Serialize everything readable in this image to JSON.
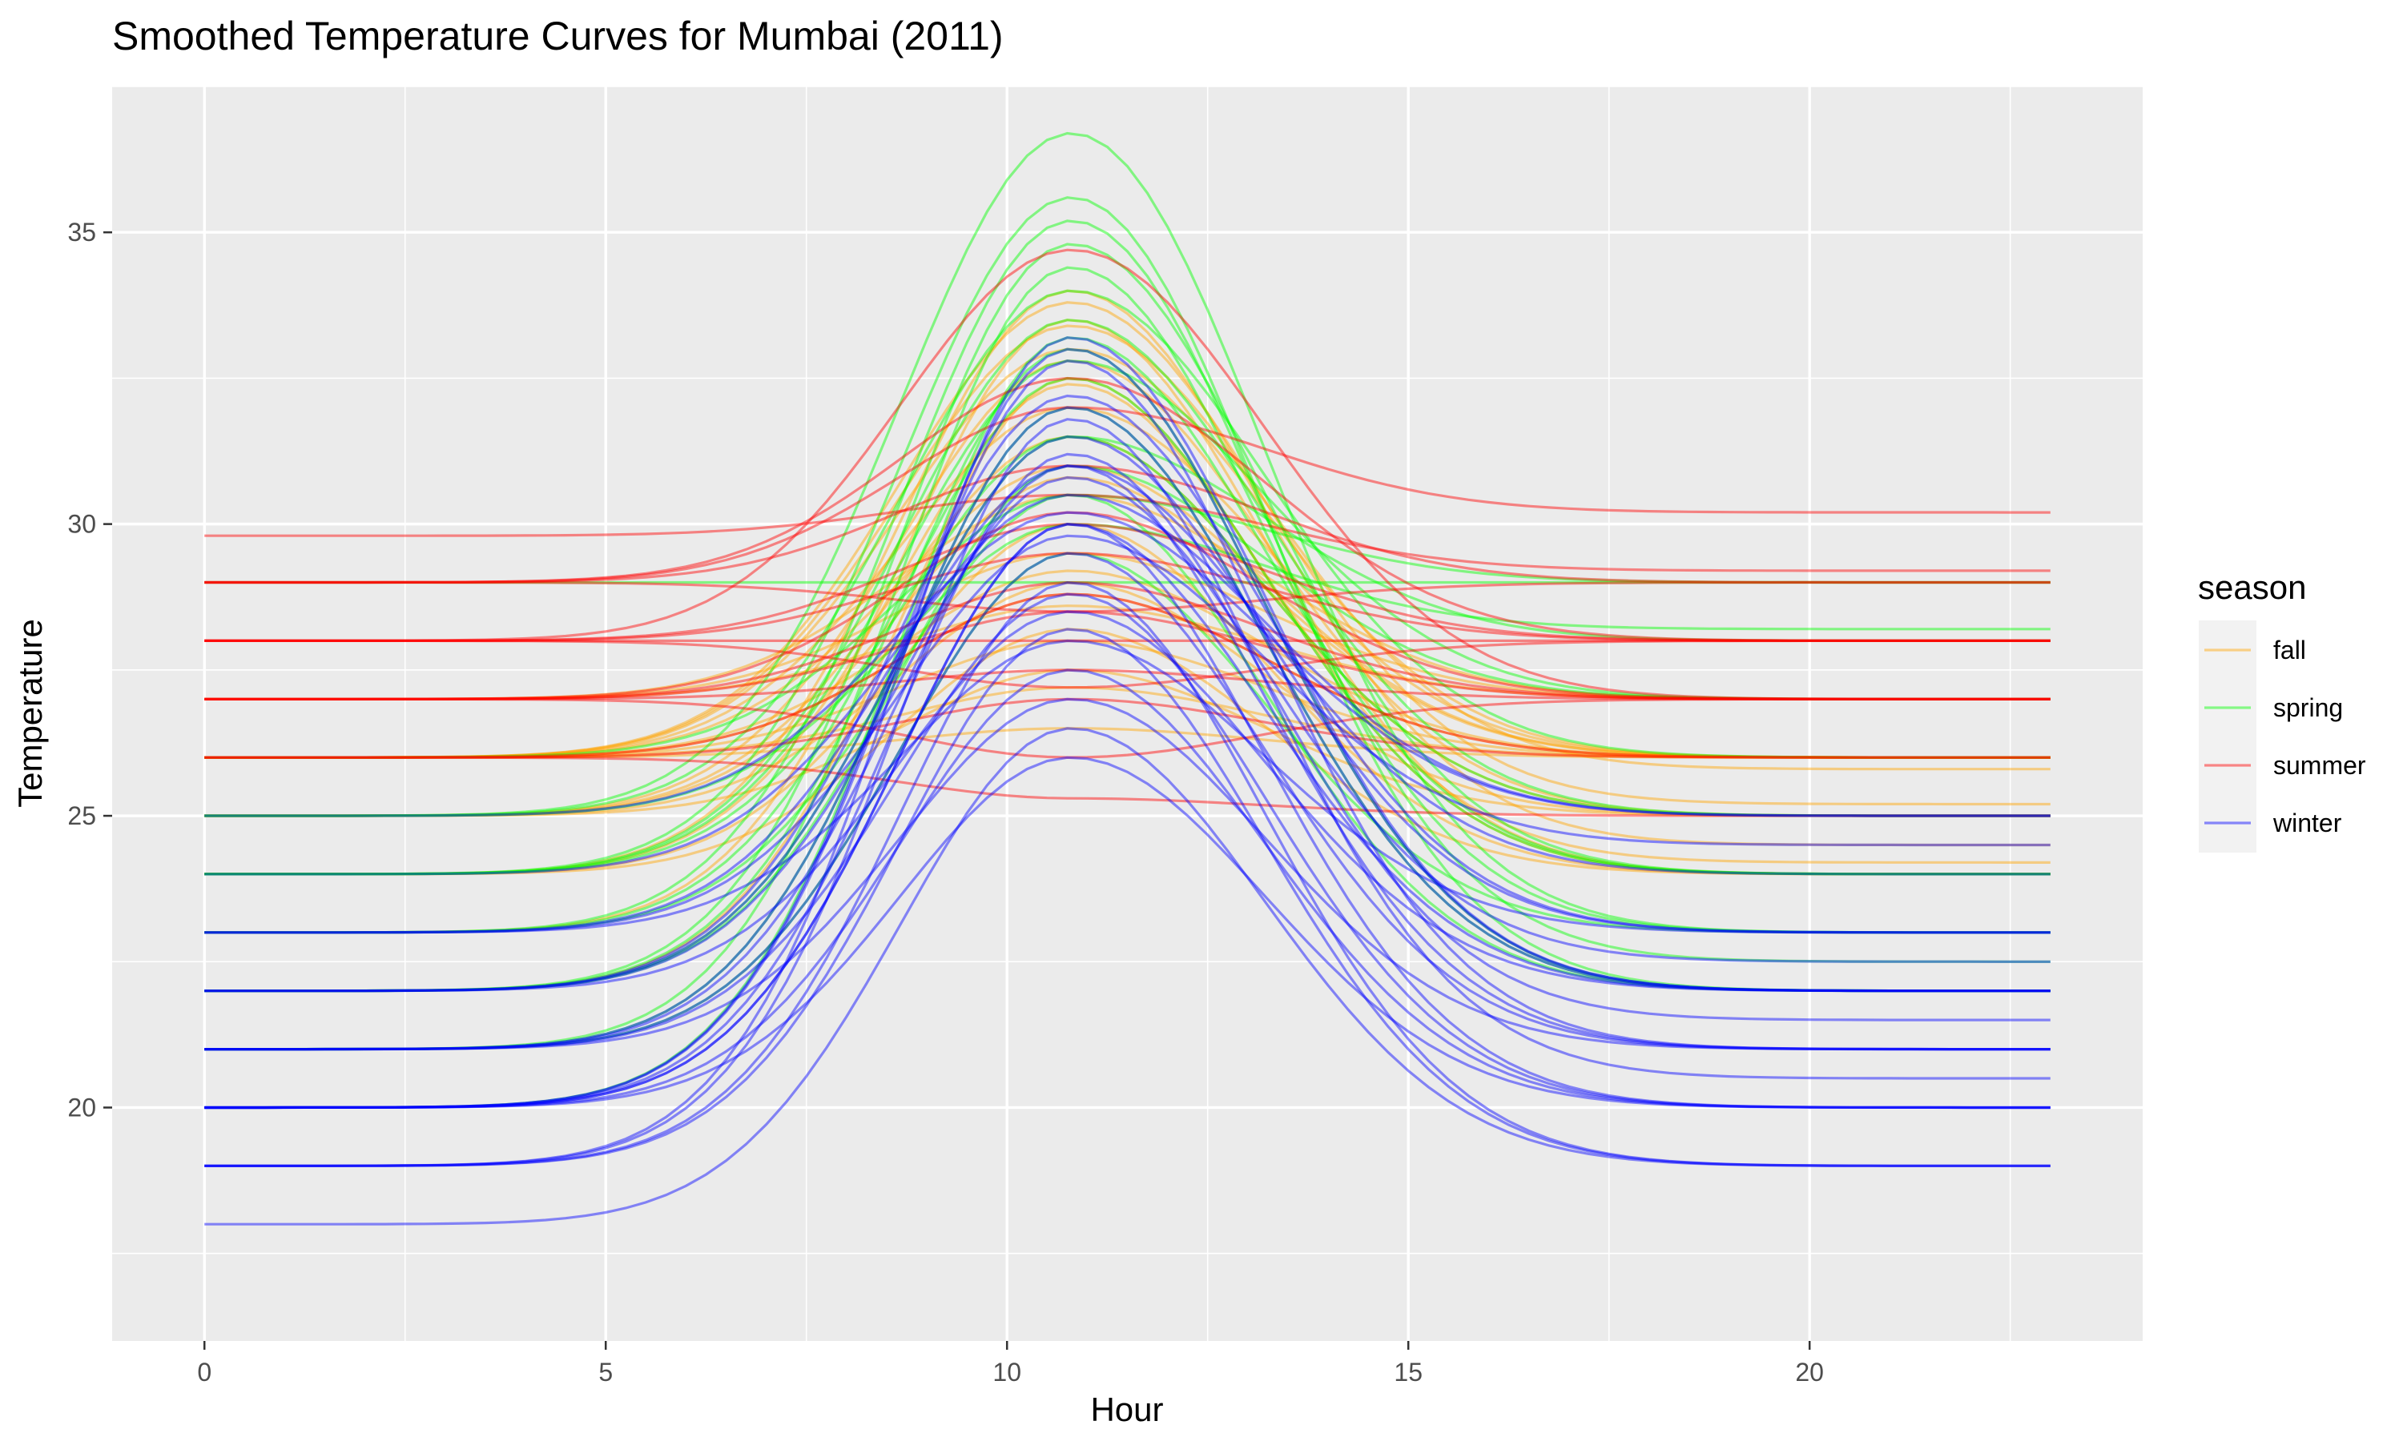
{
  "chart_data": {
    "type": "line",
    "title": "Smoothed Temperature Curves for Mumbai (2011)",
    "xlabel": "Hour",
    "ylabel": "Temperature",
    "xlim": [
      -1.15,
      24.15
    ],
    "ylim": [
      16.0,
      37.5
    ],
    "x_ticks": [
      0,
      5,
      10,
      15,
      20
    ],
    "y_ticks": [
      20,
      25,
      30,
      35
    ],
    "x_tick_labels": [
      "0",
      "5",
      "10",
      "15",
      "20"
    ],
    "y_tick_labels": [
      "20",
      "25",
      "30",
      "35"
    ],
    "grid": true,
    "legend": {
      "title": "season",
      "position": "right"
    },
    "x": [
      0,
      23
    ],
    "series": [
      {
        "name": "fall",
        "color": "#FFA500",
        "opacity": 0.45,
        "curves": [
          [
            26,
            33.8,
            25.2
          ],
          [
            26,
            33.4,
            25.8
          ],
          [
            26,
            33.0,
            26.0
          ],
          [
            25,
            32.8,
            25.0
          ],
          [
            24,
            32.4,
            24.2
          ],
          [
            26,
            32.0,
            26.0
          ],
          [
            25,
            31.5,
            25.0
          ],
          [
            26,
            31.0,
            26.0
          ],
          [
            27,
            30.5,
            27.0
          ],
          [
            24,
            30.0,
            24.0
          ],
          [
            26,
            29.2,
            26.0
          ],
          [
            25,
            29.0,
            25.0
          ],
          [
            26,
            28.8,
            26.0
          ],
          [
            27,
            28.6,
            27.0
          ],
          [
            24,
            28.2,
            24.0
          ],
          [
            26,
            28.0,
            26.0
          ],
          [
            25,
            27.5,
            25.0
          ],
          [
            26,
            27.2,
            26.0
          ],
          [
            24,
            34.0,
            24.5
          ],
          [
            23,
            33.5,
            24.0
          ],
          [
            22,
            32.5,
            24.0
          ],
          [
            25,
            30.8,
            26.0
          ],
          [
            27,
            29.5,
            27.0
          ],
          [
            26,
            26.5,
            26.0
          ]
        ]
      },
      {
        "name": "spring",
        "color": "#00FF00",
        "opacity": 0.45,
        "curves": [
          [
            25,
            36.7,
            23.0
          ],
          [
            24,
            35.6,
            22.0
          ],
          [
            23,
            35.2,
            22.5
          ],
          [
            22,
            34.8,
            24.0
          ],
          [
            21,
            34.4,
            23.0
          ],
          [
            25,
            34.0,
            26.0
          ],
          [
            24,
            33.5,
            25.0
          ],
          [
            22,
            33.0,
            22.0
          ],
          [
            23,
            32.5,
            24.0
          ],
          [
            21,
            32.0,
            22.0
          ],
          [
            24,
            31.5,
            28.0
          ],
          [
            22,
            31.0,
            27.0
          ],
          [
            26,
            30.5,
            29.0
          ],
          [
            29,
            29.0,
            29.0
          ],
          [
            25,
            30.0,
            28.2
          ],
          [
            21,
            29.5,
            23.0
          ],
          [
            23,
            30.5,
            22.0
          ],
          [
            22,
            31.5,
            25.0
          ],
          [
            24,
            32.8,
            27.0
          ],
          [
            20,
            33.2,
            24.0
          ]
        ]
      },
      {
        "name": "summer",
        "color": "#FF0000",
        "opacity": 0.45,
        "curves": [
          [
            29,
            32.0,
            30.2
          ],
          [
            28,
            34.7,
            27.0
          ],
          [
            29,
            31.0,
            29.0
          ],
          [
            28,
            30.0,
            28.0
          ],
          [
            27,
            29.0,
            27.0
          ],
          [
            29,
            28.5,
            29.0
          ],
          [
            28,
            28.0,
            28.0
          ],
          [
            27,
            27.5,
            27.0
          ],
          [
            26,
            27.0,
            26.0
          ],
          [
            27,
            26.0,
            27.0
          ],
          [
            28,
            29.5,
            28.0
          ],
          [
            29.8,
            30.5,
            29.2
          ],
          [
            27,
            28.5,
            27.0
          ],
          [
            26,
            25.3,
            25.0
          ],
          [
            28,
            27.2,
            28.0
          ],
          [
            27,
            30.2,
            27.0
          ],
          [
            26,
            28.8,
            26.0
          ],
          [
            29,
            32.5,
            28.0
          ]
        ]
      },
      {
        "name": "winter",
        "color": "#0000FF",
        "opacity": 0.45,
        "curves": [
          [
            18,
            26.5,
            19.0
          ],
          [
            19,
            33.2,
            22.0
          ],
          [
            20,
            32.8,
            21.0
          ],
          [
            21,
            32.0,
            22.0
          ],
          [
            22,
            31.5,
            23.0
          ],
          [
            23,
            31.0,
            24.0
          ],
          [
            24,
            30.5,
            25.0
          ],
          [
            20,
            30.0,
            20.0
          ],
          [
            21,
            29.5,
            21.0
          ],
          [
            19,
            29.0,
            19.0
          ],
          [
            22,
            28.5,
            22.0
          ],
          [
            23,
            28.0,
            23.0
          ],
          [
            20,
            27.5,
            20.0
          ],
          [
            21,
            27.0,
            21.0
          ],
          [
            19,
            31.8,
            20.5
          ],
          [
            20,
            31.2,
            21.5
          ],
          [
            22,
            30.8,
            22.5
          ],
          [
            23,
            29.8,
            24.5
          ],
          [
            21,
            28.8,
            20.0
          ],
          [
            20,
            33.0,
            22.0
          ],
          [
            25,
            30.2,
            25.0
          ],
          [
            19,
            28.2,
            19.0
          ],
          [
            20,
            26.0,
            20.0
          ],
          [
            22,
            32.2,
            23.0
          ],
          [
            21,
            31.0,
            21.0
          ],
          [
            20,
            30.0,
            22.0
          ]
        ]
      }
    ]
  }
}
